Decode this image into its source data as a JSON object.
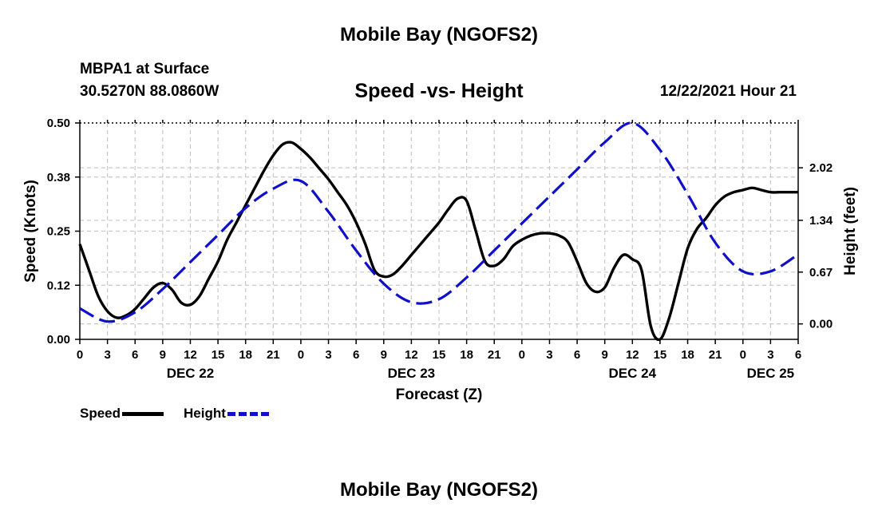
{
  "header": {
    "title": "Mobile Bay (NGOFS2)",
    "station": "MBPA1 at Surface",
    "coords": "30.5270N  88.0860W",
    "subtitle": "Speed -vs- Height",
    "datetime": "12/22/2021 Hour 21",
    "bottom_title": "Mobile Bay (NGOFS2)"
  },
  "legend": {
    "speed": "Speed",
    "height": "Height"
  },
  "colors": {
    "speed": "#000000",
    "height": "#1010c8",
    "grid": "#c8c8c8"
  },
  "chart_data": {
    "type": "line",
    "title": "Speed -vs- Height",
    "xlabel": "Forecast (Z)",
    "ylabel": "Speed (Knots)",
    "y2label": "Height (feet)",
    "x_range": [
      0,
      78
    ],
    "ylim": [
      0,
      0.5
    ],
    "y2lim": [
      -0.2,
      2.6
    ],
    "x_ticks": [
      0,
      3,
      6,
      9,
      12,
      15,
      18,
      21,
      24,
      27,
      30,
      33,
      36,
      39,
      42,
      45,
      48,
      51,
      54,
      57,
      60,
      63,
      66,
      69,
      72,
      75,
      78
    ],
    "x_tick_labels": [
      "0",
      "3",
      "6",
      "9",
      "12",
      "15",
      "18",
      "21",
      "0",
      "3",
      "6",
      "9",
      "12",
      "15",
      "18",
      "21",
      "0",
      "3",
      "6",
      "9",
      "12",
      "15",
      "18",
      "21",
      "0",
      "3",
      "6"
    ],
    "date_labels": [
      {
        "label": "DEC 22",
        "x": 12
      },
      {
        "label": "DEC 23",
        "x": 36
      },
      {
        "label": "DEC 24",
        "x": 60
      },
      {
        "label": "DEC 25",
        "x": 75
      }
    ],
    "y_ticks": [
      0.0,
      0.125,
      0.25,
      0.375,
      0.5
    ],
    "y_tick_labels": [
      "0.00",
      "0.12",
      "0.25",
      "0.38",
      "0.50"
    ],
    "y2_ticks": [
      0.0,
      0.67,
      1.34,
      2.02
    ],
    "y2_tick_labels": [
      "0.00",
      "0.67",
      "1.34",
      "2.02"
    ],
    "legend_position": "bottom-left",
    "series": [
      {
        "name": "Speed",
        "axis": "left",
        "style": "solid",
        "x": [
          0,
          1,
          2,
          3,
          4,
          5,
          6,
          7,
          8,
          9,
          10,
          11,
          12,
          13,
          14,
          15,
          16,
          17,
          18,
          19,
          20,
          21,
          22,
          23,
          24,
          25,
          26,
          27,
          28,
          29,
          30,
          31,
          32,
          33,
          34,
          35,
          36,
          37,
          38,
          39,
          40,
          41,
          42,
          43,
          44,
          45,
          46,
          47,
          48,
          49,
          50,
          51,
          52,
          53,
          54,
          55,
          56,
          57,
          58,
          59,
          60,
          61,
          62,
          63,
          64,
          65,
          66,
          67,
          68,
          69,
          70,
          71,
          72,
          73,
          74,
          75,
          76,
          77,
          78
        ],
        "values": [
          0.22,
          0.16,
          0.1,
          0.065,
          0.05,
          0.055,
          0.07,
          0.095,
          0.12,
          0.13,
          0.115,
          0.085,
          0.08,
          0.1,
          0.14,
          0.18,
          0.23,
          0.27,
          0.31,
          0.35,
          0.39,
          0.425,
          0.45,
          0.455,
          0.44,
          0.42,
          0.395,
          0.37,
          0.34,
          0.31,
          0.27,
          0.22,
          0.16,
          0.145,
          0.15,
          0.17,
          0.195,
          0.22,
          0.245,
          0.27,
          0.3,
          0.325,
          0.32,
          0.25,
          0.18,
          0.17,
          0.185,
          0.215,
          0.23,
          0.24,
          0.245,
          0.245,
          0.24,
          0.225,
          0.18,
          0.13,
          0.11,
          0.12,
          0.165,
          0.195,
          0.185,
          0.16,
          0.03,
          0.0,
          0.05,
          0.13,
          0.21,
          0.255,
          0.28,
          0.31,
          0.33,
          0.34,
          0.345,
          0.35,
          0.345,
          0.34,
          0.34,
          0.34,
          0.34
        ]
      },
      {
        "name": "Height",
        "axis": "right",
        "style": "dashed",
        "x": [
          0,
          3,
          6,
          9,
          12,
          15,
          18,
          21,
          24,
          27,
          30,
          33,
          36,
          39,
          42,
          45,
          48,
          51,
          54,
          57,
          60,
          63,
          66,
          69,
          72,
          75,
          78
        ],
        "values": [
          0.2,
          0.03,
          0.15,
          0.45,
          0.8,
          1.15,
          1.5,
          1.75,
          1.85,
          1.45,
          0.95,
          0.52,
          0.28,
          0.32,
          0.6,
          0.95,
          1.3,
          1.65,
          2.0,
          2.35,
          2.6,
          2.25,
          1.68,
          1.05,
          0.68,
          0.68,
          0.9
        ]
      }
    ]
  }
}
